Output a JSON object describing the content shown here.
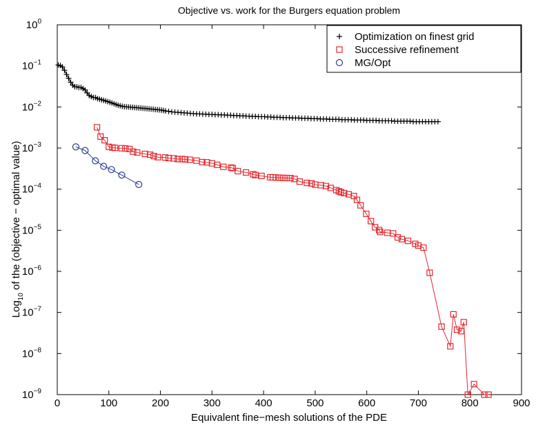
{
  "chart_data": {
    "type": "line",
    "title": "Objective vs. work for the Burgers equation problem",
    "xlabel": "Equivalent fine−mesh solutions of the PDE",
    "ylabel": {
      "prefix": "Log",
      "subscript": "10",
      "suffix": " of the (objective − optimal value)"
    },
    "y_scale": "log",
    "xlim": [
      0,
      900
    ],
    "ylim": [
      1e-09,
      1
    ],
    "x_ticks": [
      0,
      100,
      200,
      300,
      400,
      500,
      600,
      700,
      800,
      900
    ],
    "y_ticks": [
      {
        "value": 1.0,
        "base": "10",
        "exp": "0"
      },
      {
        "value": 0.1,
        "base": "10",
        "exp": "−1"
      },
      {
        "value": 0.01,
        "base": "10",
        "exp": "−2"
      },
      {
        "value": 0.001,
        "base": "10",
        "exp": "−3"
      },
      {
        "value": 0.0001,
        "base": "10",
        "exp": "−4"
      },
      {
        "value": 1e-05,
        "base": "10",
        "exp": "−5"
      },
      {
        "value": 1e-06,
        "base": "10",
        "exp": "−6"
      },
      {
        "value": 1e-07,
        "base": "10",
        "exp": "−7"
      },
      {
        "value": 1e-08,
        "base": "10",
        "exp": "−8"
      },
      {
        "value": 1e-09,
        "base": "10",
        "exp": "−9"
      }
    ],
    "grid": false,
    "legend_position": "top-right",
    "series": [
      {
        "name": "Optimization on finest grid",
        "marker": "plus",
        "color": "#000000",
        "x": [
          2,
          6,
          10,
          14,
          18,
          22,
          26,
          30,
          34,
          38,
          42,
          46,
          50,
          54,
          58,
          62,
          66,
          70,
          74,
          78,
          82,
          86,
          90,
          94,
          98,
          102,
          106,
          110,
          114,
          118,
          122,
          126,
          130,
          134,
          138,
          142,
          146,
          150,
          154,
          158,
          162,
          166,
          170,
          174,
          178,
          182,
          186,
          190,
          194,
          198,
          202,
          206,
          210,
          216,
          222,
          228,
          234,
          240,
          246,
          252,
          258,
          264,
          270,
          276,
          282,
          288,
          294,
          300,
          306,
          312,
          318,
          324,
          330,
          336,
          342,
          348,
          354,
          360,
          366,
          372,
          378,
          384,
          390,
          396,
          402,
          408,
          414,
          420,
          426,
          432,
          438,
          444,
          450,
          456,
          462,
          468,
          474,
          480,
          486,
          492,
          498,
          504,
          510,
          516,
          522,
          528,
          534,
          540,
          546,
          552,
          558,
          564,
          570,
          576,
          582,
          588,
          594,
          600,
          606,
          612,
          618,
          624,
          630,
          636,
          642,
          648,
          654,
          660,
          666,
          672,
          678,
          684,
          690,
          696,
          702,
          708,
          714,
          720,
          726,
          732,
          738
        ],
        "y": [
          0.105,
          0.102,
          0.094,
          0.078,
          0.062,
          0.05,
          0.04,
          0.034,
          0.031,
          0.031,
          0.03,
          0.03,
          0.028,
          0.026,
          0.022,
          0.019,
          0.018,
          0.017,
          0.017,
          0.016,
          0.0155,
          0.015,
          0.0145,
          0.014,
          0.0135,
          0.013,
          0.0125,
          0.012,
          0.0115,
          0.011,
          0.0107,
          0.0104,
          0.0102,
          0.0101,
          0.01,
          0.0099,
          0.0098,
          0.0097,
          0.0096,
          0.0095,
          0.0094,
          0.0093,
          0.0092,
          0.0091,
          0.009,
          0.0089,
          0.0088,
          0.0087,
          0.0086,
          0.0085,
          0.0084,
          0.0082,
          0.008,
          0.0078,
          0.0076,
          0.0075,
          0.0074,
          0.0073,
          0.0072,
          0.0071,
          0.007,
          0.0069,
          0.0068,
          0.0068,
          0.0067,
          0.0067,
          0.0066,
          0.0066,
          0.0065,
          0.0065,
          0.0064,
          0.0064,
          0.0063,
          0.0063,
          0.0062,
          0.0062,
          0.0061,
          0.0061,
          0.006,
          0.006,
          0.0059,
          0.0059,
          0.0058,
          0.0058,
          0.0058,
          0.0057,
          0.0057,
          0.0056,
          0.0056,
          0.0056,
          0.0055,
          0.0055,
          0.0055,
          0.0054,
          0.0054,
          0.0054,
          0.0053,
          0.0053,
          0.0053,
          0.0052,
          0.0052,
          0.0052,
          0.0051,
          0.0051,
          0.0051,
          0.005,
          0.005,
          0.005,
          0.005,
          0.0049,
          0.0049,
          0.0049,
          0.0049,
          0.0048,
          0.0048,
          0.0048,
          0.0048,
          0.0047,
          0.0047,
          0.0047,
          0.0047,
          0.0046,
          0.0046,
          0.0046,
          0.0046,
          0.0046,
          0.0045,
          0.0045,
          0.0045,
          0.0045,
          0.0045,
          0.0045,
          0.0044,
          0.0044,
          0.0044,
          0.0044,
          0.0044,
          0.0044,
          0.0044,
          0.0044,
          0.0044
        ]
      },
      {
        "name": "Successive refinement",
        "marker": "square",
        "color": "#e4262c",
        "x": [
          77,
          84,
          92,
          100,
          107,
          112,
          125,
          132,
          140,
          147,
          155,
          170,
          180,
          187,
          195,
          209,
          216,
          226,
          234,
          242,
          248,
          257,
          270,
          281,
          290,
          300,
          310,
          322,
          337,
          340,
          350,
          366,
          380,
          384,
          396,
          413,
          418,
          424,
          431,
          438,
          445,
          452,
          460,
          470,
          484,
          493,
          500,
          511,
          521,
          530,
          541,
          546,
          550,
          556,
          565,
          575,
          581,
          588,
          599,
          608,
          616,
          624,
          626,
          640,
          651,
          660,
          668,
          680,
          694,
          700,
          710,
          722,
          745,
          762,
          768,
          775,
          783,
          788,
          796,
          808,
          828,
          836
        ],
        "y": [
          0.0032,
          0.0019,
          0.00155,
          0.00107,
          0.00103,
          0.00101,
          0.00099,
          0.00098,
          0.00095,
          0.00082,
          0.00078,
          0.00072,
          0.00069,
          0.00064,
          0.0006,
          0.00059,
          0.00057,
          0.00056,
          0.00054,
          0.00054,
          0.00053,
          0.00052,
          0.000495,
          0.000455,
          0.00045,
          0.000425,
          0.00039,
          0.00035,
          0.000335,
          0.000325,
          0.000275,
          0.000255,
          0.00023,
          0.00022,
          0.00021,
          0.000195,
          0.000194,
          0.000192,
          0.00019,
          0.000188,
          0.000187,
          0.000186,
          0.000177,
          0.000153,
          0.000142,
          0.000138,
          0.000129,
          0.000125,
          0.000119,
          0.000107,
          9.49e-05,
          8.84e-05,
          8.42e-05,
          8.04e-05,
          7.49e-05,
          6.81e-05,
          5.49e-05,
          4.04e-05,
          2.51e-05,
          1.67e-05,
          1.18e-05,
          1.01e-05,
          9.1e-06,
          8.7e-06,
          8.4e-06,
          6.7e-06,
          6.08e-06,
          5.53e-06,
          4.67e-06,
          4.23e-06,
          3.77e-06,
          9.24e-07,
          4.52e-08,
          1.5e-08,
          9e-08,
          3.8e-08,
          3.5e-08,
          5.8e-08,
          1e-09,
          1.8e-09,
          1e-09,
          1e-09
        ]
      },
      {
        "name": "MG/Opt",
        "marker": "circle",
        "color": "#2b3a8f",
        "x": [
          36,
          54,
          74,
          90,
          105,
          125,
          158
        ],
        "y": [
          0.00107,
          0.00087,
          0.00049,
          0.00036,
          0.0003,
          0.00022,
          0.00013
        ]
      }
    ]
  }
}
